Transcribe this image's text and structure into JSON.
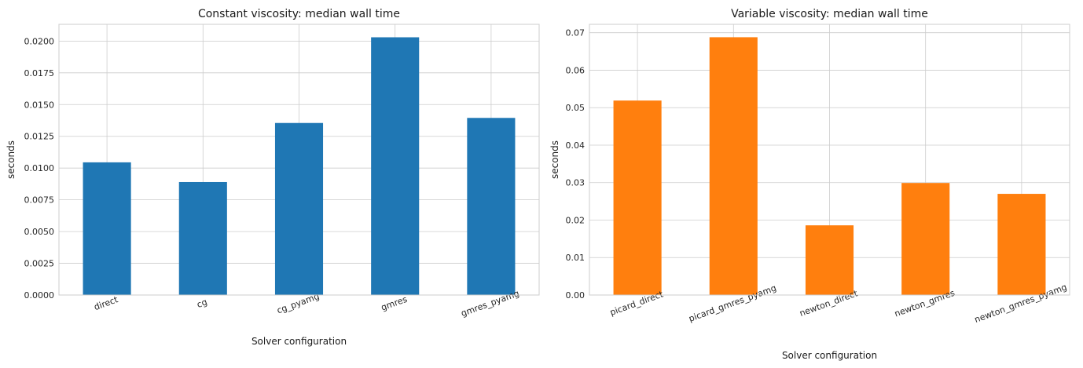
{
  "chart_data": [
    {
      "type": "bar",
      "title": "Constant viscosity: median wall time",
      "xlabel": "Solver configuration",
      "ylabel": "seconds",
      "categories": [
        "direct",
        "cg",
        "cg_pyamg",
        "gmres",
        "gmres_pyamg"
      ],
      "values": [
        0.01045,
        0.0089,
        0.01355,
        0.0203,
        0.01395
      ],
      "ylim": [
        0,
        0.02132
      ],
      "yticks": [
        0.0,
        0.0025,
        0.005,
        0.0075,
        0.01,
        0.0125,
        0.015,
        0.0175,
        0.02
      ],
      "ytick_labels": [
        "0.0000",
        "0.0025",
        "0.0050",
        "0.0075",
        "0.0100",
        "0.0125",
        "0.0150",
        "0.0175",
        "0.0200"
      ],
      "color": "#1f77b4",
      "grid": true,
      "xtick_rotation": 20
    },
    {
      "type": "bar",
      "title": "Variable viscosity: median wall time",
      "xlabel": "Solver configuration",
      "ylabel": "seconds",
      "categories": [
        "picard_direct",
        "picard_gmres_pyamg",
        "newton_direct",
        "newton_gmres",
        "newton_gmres_pyamg"
      ],
      "values": [
        0.0519,
        0.0688,
        0.0186,
        0.0299,
        0.027
      ],
      "ylim": [
        0,
        0.07224
      ],
      "yticks": [
        0.0,
        0.01,
        0.02,
        0.03,
        0.04,
        0.05,
        0.06,
        0.07
      ],
      "ytick_labels": [
        "0.00",
        "0.01",
        "0.02",
        "0.03",
        "0.04",
        "0.05",
        "0.06",
        "0.07"
      ],
      "color": "#ff7f0e",
      "grid": true,
      "xtick_rotation": 20
    }
  ]
}
